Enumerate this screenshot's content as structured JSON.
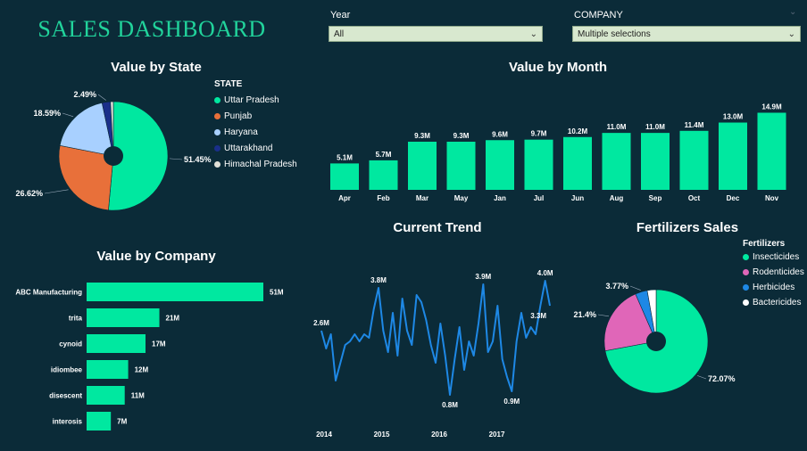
{
  "dashboard": {
    "title": "SALES DASHBOARD"
  },
  "slicers": {
    "year": {
      "label": "Year",
      "value": "All"
    },
    "company": {
      "label": "COMPANY",
      "value": "Multiple selections"
    }
  },
  "colors": {
    "accent": "#00e8a0",
    "background": "#0b2b38",
    "line": "#1e88e5"
  },
  "chart_data": [
    {
      "type": "pie",
      "title": "Value by State",
      "legend_title": "STATE",
      "legend_position": "right",
      "labels": [
        "Uttar Pradesh",
        "Punjab",
        "Haryana",
        "Uttarakhand",
        "Himachal Pradesh"
      ],
      "values": [
        51.45,
        26.62,
        18.59,
        2.49,
        0.85
      ],
      "display_labels": [
        "51.45%",
        "26.62%",
        "18.59%",
        "2.49%",
        ""
      ],
      "colors": [
        "#00e8a0",
        "#e8703a",
        "#a8d0ff",
        "#1a2f8a",
        "#e0e0d8"
      ]
    },
    {
      "type": "bar",
      "title": "Value by Month",
      "categories": [
        "Apr",
        "Feb",
        "Mar",
        "May",
        "Jan",
        "Jul",
        "Jun",
        "Aug",
        "Sep",
        "Oct",
        "Dec",
        "Nov"
      ],
      "values": [
        5.1,
        5.7,
        9.3,
        9.3,
        9.6,
        9.7,
        10.2,
        11.0,
        11.0,
        11.4,
        13.0,
        14.9
      ],
      "value_labels": [
        "5.1M",
        "5.7M",
        "9.3M",
        "9.3M",
        "9.6M",
        "9.7M",
        "10.2M",
        "11.0M",
        "11.0M",
        "11.4M",
        "13.0M",
        "14.9M"
      ],
      "ylim": [
        0,
        15.5
      ],
      "color": "#00e8a0"
    },
    {
      "type": "bar",
      "orientation": "horizontal",
      "title": "Value by Company",
      "categories": [
        "ABC Manufacturing",
        "trita",
        "cynoid",
        "idiombee",
        "disescent",
        "interosis"
      ],
      "values": [
        51,
        21,
        17,
        12,
        11,
        7
      ],
      "value_labels": [
        "51M",
        "21M",
        "17M",
        "12M",
        "11M",
        "7M"
      ],
      "xlim": [
        0,
        53
      ],
      "color": "#00e8a0"
    },
    {
      "type": "line",
      "title": "Current Trend",
      "x_ticks": [
        "2014",
        "2015",
        "2016",
        "2017"
      ],
      "values": [
        2.6,
        2.1,
        2.5,
        1.2,
        1.7,
        2.2,
        2.3,
        2.5,
        2.3,
        2.5,
        2.4,
        3.2,
        3.8,
        2.6,
        2.0,
        3.1,
        1.9,
        3.5,
        2.6,
        2.2,
        3.6,
        3.4,
        2.9,
        2.2,
        1.7,
        2.8,
        1.9,
        0.8,
        1.8,
        2.7,
        1.5,
        2.3,
        1.9,
        2.8,
        3.9,
        2.0,
        2.3,
        3.3,
        1.8,
        1.3,
        0.9,
        2.3,
        3.1,
        2.4,
        2.7,
        2.5,
        3.3,
        4.0,
        3.3
      ],
      "annotations": [
        {
          "index": 0,
          "label": "2.6M"
        },
        {
          "index": 12,
          "label": "3.8M"
        },
        {
          "index": 27,
          "label": "0.8M"
        },
        {
          "index": 34,
          "label": "3.9M"
        },
        {
          "index": 40,
          "label": "0.9M"
        },
        {
          "index": 47,
          "label": "4.0M"
        },
        {
          "index": 48,
          "label": "3.3M"
        }
      ],
      "ylim": [
        0.5,
        4.2
      ],
      "color": "#1e88e5"
    },
    {
      "type": "pie",
      "title": "Fertilizers Sales",
      "legend_title": "Fertilizers",
      "legend_position": "top-right",
      "labels": [
        "Insecticides",
        "Rodenticides",
        "Herbicides",
        "Bactericides"
      ],
      "values": [
        72.07,
        21.4,
        3.77,
        2.76
      ],
      "display_labels": [
        "72.07%",
        "21.4%",
        "3.77%",
        ""
      ],
      "colors": [
        "#00e8a0",
        "#e066b8",
        "#1e88e5",
        "#ffffff"
      ]
    }
  ]
}
